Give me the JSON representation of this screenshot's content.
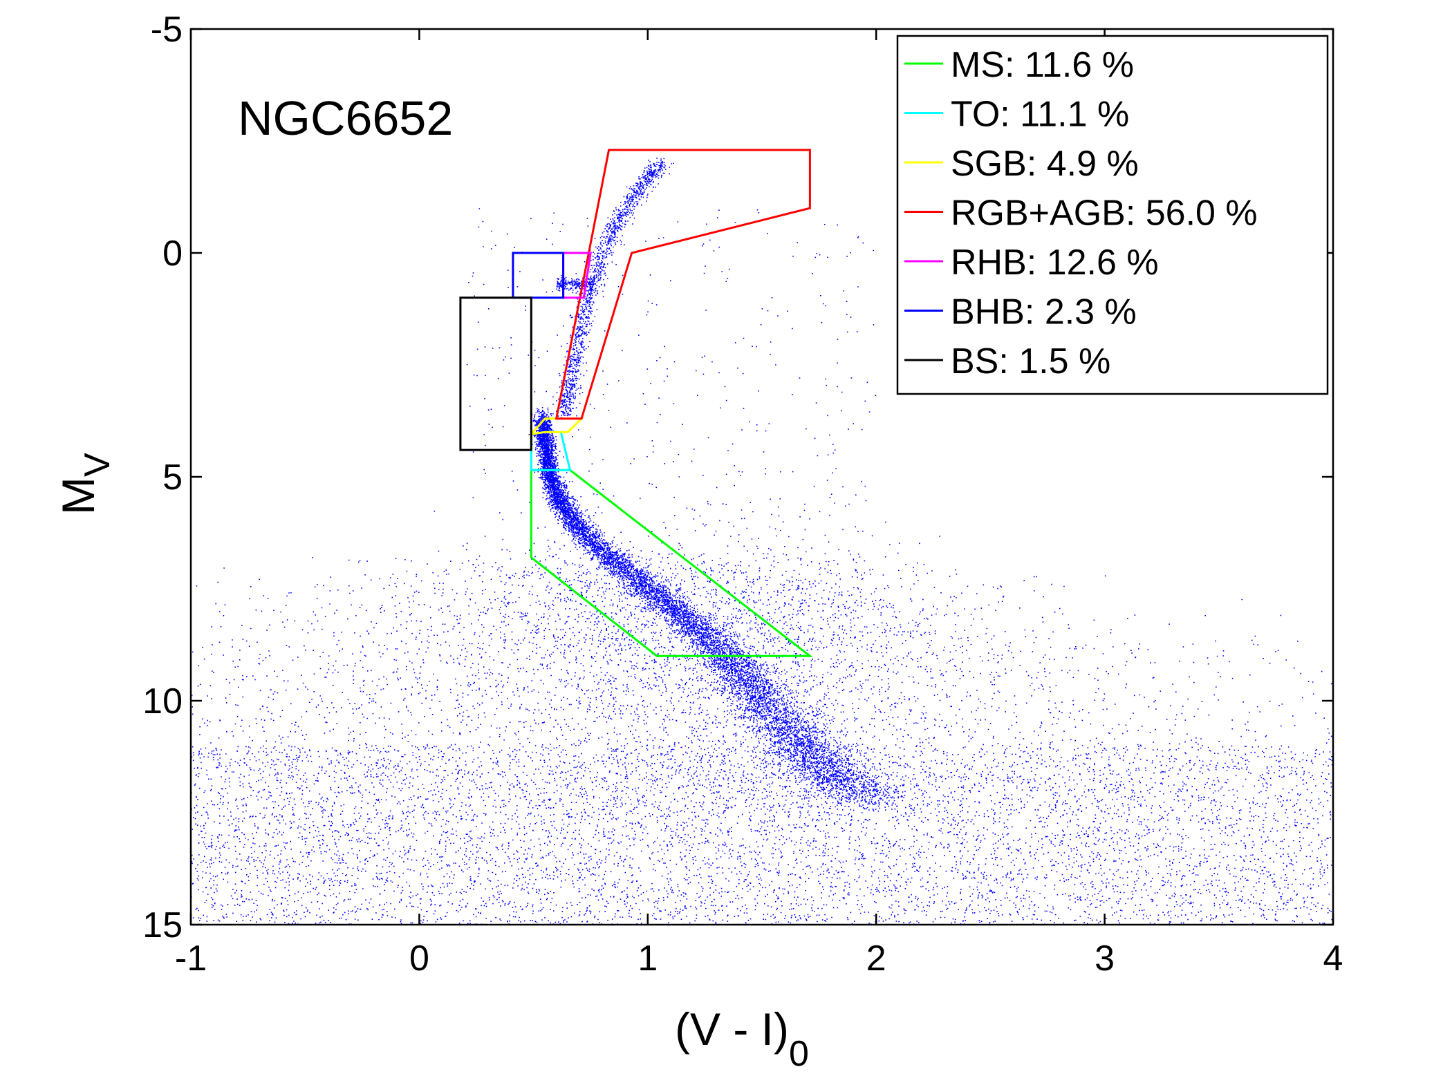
{
  "chart_data": {
    "type": "scatter",
    "annotation": "NGC6652",
    "xlabel_main": "(V - I)",
    "xlabel_sub": "0",
    "ylabel_main": "M",
    "ylabel_sub": "V",
    "xlim": [
      -1,
      4
    ],
    "ylim": [
      -5,
      15
    ],
    "y_inverted": true,
    "x_ticks": [
      -1,
      0,
      1,
      2,
      3,
      4
    ],
    "x_tick_labels": [
      "-1",
      "0",
      "1",
      "2",
      "3",
      "4"
    ],
    "y_ticks": [
      -5,
      0,
      5,
      10,
      15
    ],
    "y_tick_labels": [
      "-5",
      "0",
      "5",
      "10",
      "15"
    ],
    "grid": false,
    "legend_position": "top-right",
    "points_color": "#0000ff",
    "regions": [
      {
        "label": "MS: 11.6 %",
        "color": "#00ff00",
        "vertices": [
          [
            0.49,
            4.85
          ],
          [
            0.66,
            4.85
          ],
          [
            1.71,
            9.0
          ],
          [
            1.04,
            9.0
          ],
          [
            0.49,
            6.8
          ]
        ]
      },
      {
        "label": "TO: 11.1 %",
        "color": "#00ffff",
        "vertices": [
          [
            0.49,
            4.05
          ],
          [
            0.55,
            4.0
          ],
          [
            0.62,
            4.0
          ],
          [
            0.66,
            4.85
          ],
          [
            0.49,
            4.85
          ]
        ]
      },
      {
        "label": "SGB: 4.9 %",
        "color": "#ffff00",
        "vertices": [
          [
            0.49,
            4.05
          ],
          [
            0.55,
            3.7
          ],
          [
            0.71,
            3.7
          ],
          [
            0.65,
            4.0
          ],
          [
            0.55,
            4.0
          ]
        ]
      },
      {
        "label": "RGB+AGB: 56.0 %",
        "color": "#ff0000",
        "vertices": [
          [
            0.6,
            3.7
          ],
          [
            0.83,
            -2.3
          ],
          [
            1.71,
            -2.3
          ],
          [
            1.71,
            -1.0
          ],
          [
            0.93,
            0.0
          ],
          [
            0.71,
            3.7
          ]
        ]
      },
      {
        "label": "RHB: 12.6 %",
        "color": "#ff00ff",
        "vertices": [
          [
            0.63,
            0.0
          ],
          [
            0.75,
            0.0
          ],
          [
            0.72,
            1.0
          ],
          [
            0.63,
            1.0
          ]
        ]
      },
      {
        "label": "BHB: 2.3 %",
        "color": "#0000ff",
        "vertices": [
          [
            0.41,
            0.0
          ],
          [
            0.63,
            0.0
          ],
          [
            0.63,
            1.0
          ],
          [
            0.41,
            1.0
          ]
        ]
      },
      {
        "label": "BS: 1.5 %",
        "color": "#000000",
        "vertices": [
          [
            0.18,
            1.0
          ],
          [
            0.49,
            1.0
          ],
          [
            0.49,
            4.4
          ],
          [
            0.18,
            4.4
          ]
        ]
      }
    ]
  }
}
